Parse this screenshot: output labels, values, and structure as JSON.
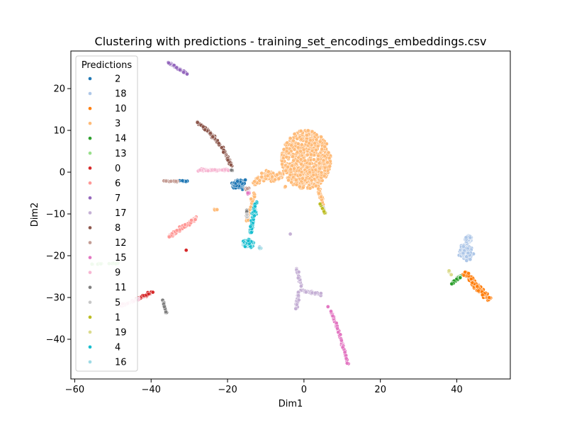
{
  "chart_data": {
    "type": "scatter",
    "title": "Clustering with predictions - training_set_encodings_embeddings.csv",
    "xlabel": "Dim1",
    "ylabel": "Dim2",
    "xlim": [
      -61,
      54
    ],
    "ylim": [
      -49.5,
      29
    ],
    "xticks": [
      -60,
      -40,
      -20,
      0,
      20,
      40
    ],
    "yticks": [
      20,
      10,
      0,
      -10,
      -20,
      -30,
      -40
    ],
    "grid": false,
    "legend": {
      "title": "Predictions",
      "placement": "upper-left"
    },
    "series": [
      {
        "name": "2",
        "color": "#1f77b4",
        "clusters": [
          {
            "type": "blob",
            "c": [
              -17,
              -3
            ],
            "s": [
              2.0,
              1.3
            ],
            "n": 160
          },
          {
            "type": "line",
            "from": [
              -33,
              -2
            ],
            "to": [
              -30,
              -2.3
            ],
            "n": 12
          }
        ]
      },
      {
        "name": "18",
        "color": "#aec7e8",
        "clusters": [
          {
            "type": "blob",
            "c": [
              42.5,
              -19
            ],
            "s": [
              1.8,
              2.0
            ],
            "n": 300
          },
          {
            "type": "blob",
            "c": [
              43,
              -16
            ],
            "s": [
              1.0,
              0.8
            ],
            "n": 60
          },
          {
            "type": "blob",
            "c": [
              -11.5,
              -18
            ],
            "s": [
              0.4,
              0.3
            ],
            "n": 6
          }
        ]
      },
      {
        "name": "10",
        "color": "#ff7f0e",
        "clusters": [
          {
            "type": "line",
            "from": [
              42,
              -24
            ],
            "to": [
              48.5,
              -30.5
            ],
            "n": 140,
            "w": 0.9
          }
        ]
      },
      {
        "name": "3",
        "color": "#ffbb78",
        "clusters": [
          {
            "type": "disc",
            "c": [
              0.5,
              3
            ],
            "r": [
              6.5,
              7.0
            ],
            "n": 700
          },
          {
            "type": "blob",
            "c": [
              -8,
              -1
            ],
            "s": [
              3.0,
              1.3
            ],
            "n": 140
          },
          {
            "type": "line",
            "from": [
              -13,
              -3
            ],
            "to": [
              -9,
              0
            ],
            "n": 50,
            "w": 1.2
          },
          {
            "type": "line",
            "from": [
              3.5,
              -3
            ],
            "to": [
              5,
              -8
            ],
            "n": 40,
            "w": 0.6
          },
          {
            "type": "line",
            "from": [
              -13,
              -5
            ],
            "to": [
              -15,
              -12
            ],
            "n": 30,
            "w": 0.5
          },
          {
            "type": "blob",
            "c": [
              -5,
              -3.5
            ],
            "s": [
              0.3,
              0.3
            ],
            "n": 2
          },
          {
            "type": "line",
            "from": [
              -23.5,
              -9
            ],
            "to": [
              -22.5,
              -9
            ],
            "n": 4
          }
        ]
      },
      {
        "name": "14",
        "color": "#2ca02c",
        "clusters": [
          {
            "type": "line",
            "from": [
              38.5,
              -26.8
            ],
            "to": [
              41.5,
              -24.5
            ],
            "n": 25,
            "w": 0.3
          }
        ]
      },
      {
        "name": "13",
        "color": "#98df8a",
        "clusters": [
          {
            "type": "line",
            "from": [
              -56,
              -22
            ],
            "to": [
              -48,
              -21.8
            ],
            "n": 14,
            "w": 0.15
          }
        ]
      },
      {
        "name": "0",
        "color": "#d62728",
        "clusters": [
          {
            "type": "line",
            "from": [
              -44,
              -30.5
            ],
            "to": [
              -39.5,
              -28.7
            ],
            "n": 45,
            "w": 0.4
          },
          {
            "type": "blob",
            "c": [
              -30.8,
              -18.7
            ],
            "s": [
              0.1,
              0.1
            ],
            "n": 1
          }
        ]
      },
      {
        "name": "6",
        "color": "#ff9896",
        "clusters": [
          {
            "type": "line",
            "from": [
              -35.5,
              -15.5
            ],
            "to": [
              -28,
              -11
            ],
            "n": 80,
            "w": 0.5
          }
        ]
      },
      {
        "name": "7",
        "color": "#9467bd",
        "clusters": [
          {
            "type": "line",
            "from": [
              -35.5,
              26.3
            ],
            "to": [
              -30.5,
              23.5
            ],
            "n": 55,
            "w": 0.3
          }
        ]
      },
      {
        "name": "17",
        "color": "#c5b0d5",
        "clusters": [
          {
            "type": "line",
            "from": [
              -1,
              -28.3
            ],
            "to": [
              4.5,
              -29.2
            ],
            "n": 40,
            "w": 0.4
          },
          {
            "type": "line",
            "from": [
              -2,
              -23
            ],
            "to": [
              -0.5,
              -27.5
            ],
            "n": 20,
            "w": 0.4
          },
          {
            "type": "line",
            "from": [
              -1.5,
              -28.5
            ],
            "to": [
              -2.0,
              -33
            ],
            "n": 30,
            "w": 0.4
          },
          {
            "type": "blob",
            "c": [
              -3.5,
              -14.8
            ],
            "s": [
              0.1,
              0.1
            ],
            "n": 1
          }
        ]
      },
      {
        "name": "8",
        "color": "#8c564b",
        "clusters": [
          {
            "type": "curve",
            "pts": [
              [
                -28,
                12
              ],
              [
                -24,
                9.5
              ],
              [
                -20.5,
                5
              ],
              [
                -19,
                1.5
              ]
            ],
            "n": 110,
            "w": 0.4
          }
        ]
      },
      {
        "name": "12",
        "color": "#c49c94",
        "clusters": [
          {
            "type": "line",
            "from": [
              -37,
              -2
            ],
            "to": [
              -33,
              -2.2
            ],
            "n": 22,
            "w": 0.3
          },
          {
            "type": "blob",
            "c": [
              -15,
              -4
            ],
            "s": [
              0.6,
              0.6
            ],
            "n": 10
          }
        ]
      },
      {
        "name": "15",
        "color": "#e377c2",
        "clusters": [
          {
            "type": "curve",
            "pts": [
              [
                7,
                -33.3
              ],
              [
                9,
                -37
              ],
              [
                11.5,
                -46
              ]
            ],
            "n": 85,
            "w": 0.3
          },
          {
            "type": "blob",
            "c": [
              6.3,
              -32.2
            ],
            "s": [
              0.1,
              0.1
            ],
            "n": 1
          },
          {
            "type": "blob",
            "c": [
              -14.5,
              -5
            ],
            "s": [
              0.5,
              0.4
            ],
            "n": 10
          }
        ]
      },
      {
        "name": "9",
        "color": "#f7b6d2",
        "clusters": [
          {
            "type": "line",
            "from": [
              -28,
              0.5
            ],
            "to": [
              -19,
              0.5
            ],
            "n": 60,
            "w": 0.35
          },
          {
            "type": "line",
            "from": [
              -48,
              -32
            ],
            "to": [
              -43,
              -30.3
            ],
            "n": 30,
            "w": 0.3
          }
        ]
      },
      {
        "name": "11",
        "color": "#7f7f7f",
        "clusters": [
          {
            "type": "line",
            "from": [
              -37,
              -30.5
            ],
            "to": [
              -36,
              -34
            ],
            "n": 20,
            "w": 0.2
          },
          {
            "type": "line",
            "from": [
              -15,
              -9
            ],
            "to": [
              -15,
              -11
            ],
            "n": 8,
            "w": 0.1
          },
          {
            "type": "blob",
            "c": [
              -19,
              0.5
            ],
            "s": [
              0.4,
              0.3
            ],
            "n": 8
          }
        ]
      },
      {
        "name": "5",
        "color": "#c7c7c7",
        "clusters": [
          {
            "type": "blob",
            "c": [
              -14.8,
              -10.5
            ],
            "s": [
              0.2,
              0.5
            ],
            "n": 6
          },
          {
            "type": "blob",
            "c": [
              5,
              -8.5
            ],
            "s": [
              0.2,
              0.2
            ],
            "n": 2
          }
        ]
      },
      {
        "name": "1",
        "color": "#bcbd22",
        "clusters": [
          {
            "type": "line",
            "from": [
              4.2,
              -7.5
            ],
            "to": [
              5.6,
              -10
            ],
            "n": 10,
            "w": 0.15
          }
        ]
      },
      {
        "name": "19",
        "color": "#dbdb8d",
        "clusters": [
          {
            "type": "line",
            "from": [
              37.8,
              -23.5
            ],
            "to": [
              38.6,
              -24.8
            ],
            "n": 6,
            "w": 0.2
          }
        ]
      },
      {
        "name": "4",
        "color": "#17becf",
        "clusters": [
          {
            "type": "blob",
            "c": [
              -14.5,
              -17
            ],
            "s": [
              1.6,
              1.0
            ],
            "n": 190
          },
          {
            "type": "line",
            "from": [
              -12.5,
              -7
            ],
            "to": [
              -14,
              -14.5
            ],
            "n": 60,
            "w": 0.6
          }
        ]
      },
      {
        "name": "16",
        "color": "#9edae5",
        "clusters": [
          {
            "type": "blob",
            "c": [
              -11.5,
              -18.2
            ],
            "s": [
              0.3,
              0.3
            ],
            "n": 4
          }
        ]
      }
    ]
  }
}
